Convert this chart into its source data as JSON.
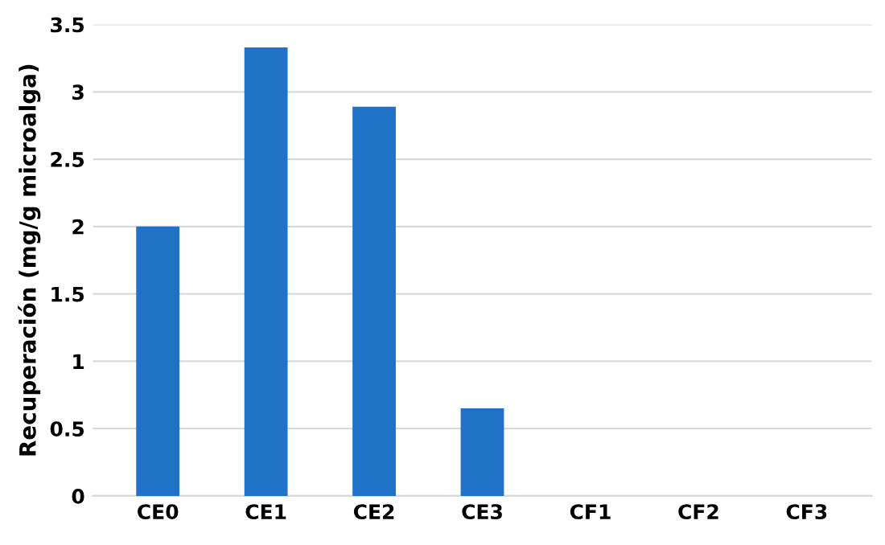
{
  "chart_data": {
    "type": "bar",
    "ylabel": "Recuperación (mg/g microalga)",
    "categories": [
      "CE0",
      "CE1",
      "CE2",
      "CE3",
      "CF1",
      "CF2",
      "CF3"
    ],
    "values": [
      2.0,
      3.33,
      2.89,
      0.65,
      0,
      0,
      0
    ],
    "color": "#1f72c8",
    "ylim": [
      0,
      3.5
    ],
    "yticks": [
      0,
      0.5,
      1,
      1.5,
      2,
      2.5,
      3,
      3.5
    ],
    "grid": "y",
    "legend": false
  }
}
